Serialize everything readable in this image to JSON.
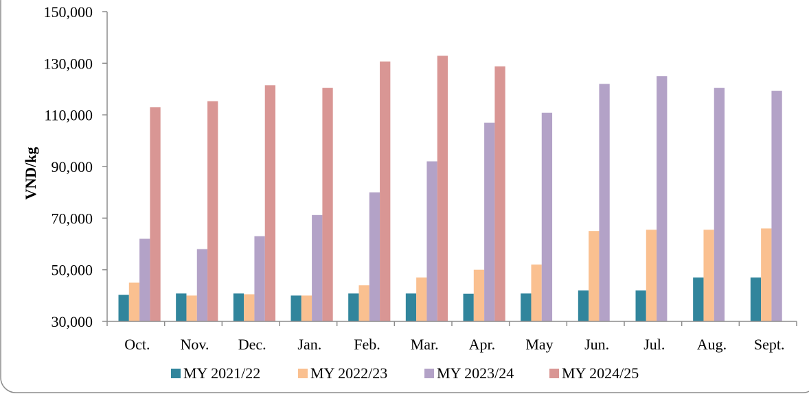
{
  "chart_data": {
    "type": "bar",
    "title": "",
    "xlabel": "",
    "ylabel": "VND/kg",
    "ylim": [
      30000,
      150000
    ],
    "yticks": [
      30000,
      50000,
      70000,
      90000,
      110000,
      130000,
      150000
    ],
    "ytick_labels": [
      "30,000",
      "50,000",
      "70,000",
      "90,000",
      "110,000",
      "130,000",
      "150,000"
    ],
    "grid": false,
    "legend_position": "bottom",
    "categories": [
      "Oct.",
      "Nov.",
      "Dec.",
      "Jan.",
      "Feb.",
      "Mar.",
      "Apr.",
      "May",
      "Jun.",
      "Jul.",
      "Aug.",
      "Sept."
    ],
    "series": [
      {
        "name": "MY 2021/22",
        "color": "#31859c",
        "values": [
          40300,
          40800,
          40800,
          40000,
          40800,
          40800,
          40700,
          40800,
          42000,
          42000,
          47000,
          47000
        ]
      },
      {
        "name": "MY 2022/23",
        "color": "#fac090",
        "values": [
          45000,
          40000,
          40500,
          40000,
          44000,
          47000,
          50000,
          52000,
          65000,
          65500,
          65500,
          66000
        ]
      },
      {
        "name": "MY 2023/24",
        "color": "#b3a2c7",
        "values": [
          62000,
          58000,
          63000,
          71200,
          80000,
          92000,
          107000,
          110800,
          122000,
          125000,
          120500,
          119300
        ]
      },
      {
        "name": "MY 2024/25",
        "color": "#d99694",
        "values": [
          113000,
          115300,
          121500,
          120500,
          130700,
          132900,
          128800,
          null,
          null,
          null,
          null,
          null
        ]
      }
    ]
  }
}
